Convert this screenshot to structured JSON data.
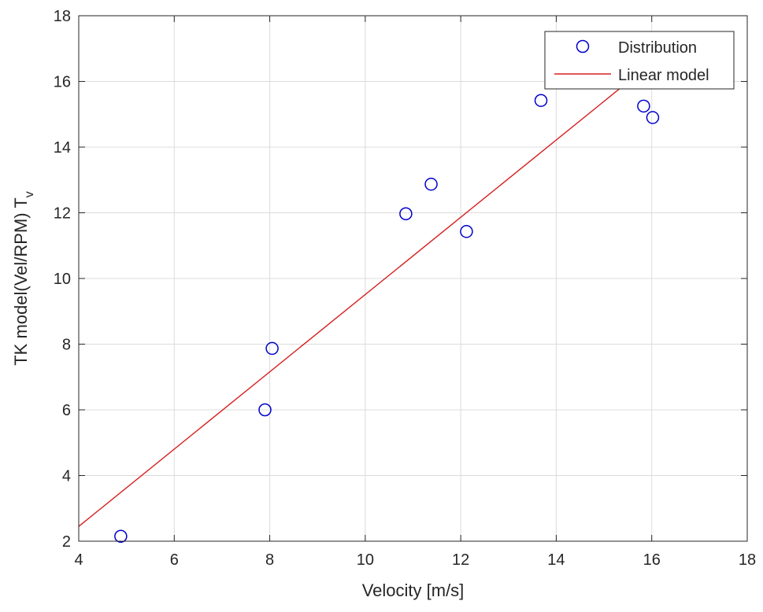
{
  "chart_data": {
    "type": "scatter",
    "title": "",
    "xlabel": "Velocity [m/s]",
    "ylabel_main": "TK model(Vel/RPM) T",
    "ylabel_subscript": "v",
    "xlim": [
      4,
      18
    ],
    "ylim": [
      2,
      18
    ],
    "xticks": [
      4,
      6,
      8,
      10,
      12,
      14,
      16,
      18
    ],
    "yticks": [
      2,
      4,
      6,
      8,
      10,
      12,
      14,
      16,
      18
    ],
    "grid": true,
    "legend_position": "top-right",
    "series": [
      {
        "name": "Distribution",
        "kind": "markers",
        "marker": "circle",
        "color": "#0000cc",
        "x": [
          4.88,
          7.9,
          8.05,
          10.85,
          11.38,
          12.12,
          13.68,
          15.83,
          16.02
        ],
        "y": [
          2.15,
          6.0,
          7.87,
          11.97,
          12.87,
          11.43,
          15.42,
          15.25,
          14.9
        ]
      },
      {
        "name": "Linear model",
        "kind": "line",
        "color": "#d62020",
        "x": [
          4,
          15.6
        ],
        "y": [
          2.45,
          16.1
        ]
      }
    ]
  }
}
